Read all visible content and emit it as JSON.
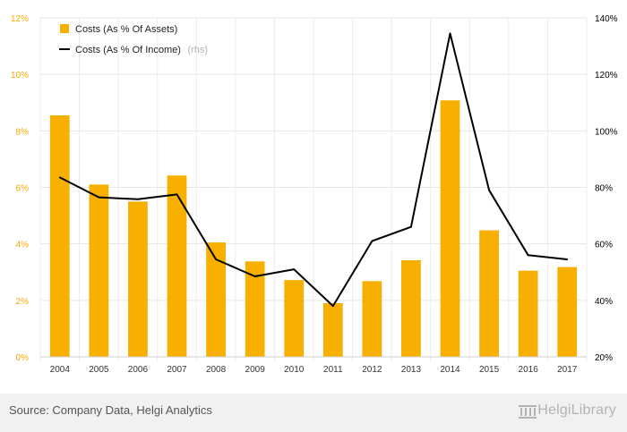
{
  "chart_data": {
    "type": "bar",
    "categories": [
      "2004",
      "2005",
      "2006",
      "2007",
      "2008",
      "2009",
      "2010",
      "2011",
      "2012",
      "2013",
      "2014",
      "2015",
      "2016",
      "2017"
    ],
    "series": [
      {
        "name": "Costs (As % Of Assets)",
        "type": "bar",
        "axis": "left",
        "color": "#f7b000",
        "values": [
          8.55,
          6.1,
          5.5,
          6.42,
          4.05,
          3.38,
          2.72,
          1.9,
          2.68,
          3.42,
          9.08,
          4.48,
          3.05,
          3.18
        ]
      },
      {
        "name": "Costs (As % Of Income)",
        "type": "line",
        "axis": "right",
        "color": "#000000",
        "values": [
          83.5,
          76.5,
          75.8,
          77.5,
          54.5,
          48.5,
          51,
          38,
          61,
          66,
          134.5,
          79,
          56,
          54.5
        ]
      }
    ],
    "y_left": {
      "min": 0,
      "max": 12,
      "ticks": [
        "0%",
        "2%",
        "4%",
        "6%",
        "8%",
        "10%",
        "12%"
      ],
      "color": "#f2a900"
    },
    "y_right": {
      "min": 20,
      "max": 140,
      "ticks": [
        "20%",
        "40%",
        "60%",
        "80%",
        "100%",
        "120%",
        "140%"
      ]
    },
    "legend": {
      "position": "top-left",
      "items": [
        {
          "label": "Costs (As % Of Assets)",
          "note": ""
        },
        {
          "label": "Costs (As % Of Income)",
          "note": "(rhs)"
        }
      ]
    },
    "grid": true
  },
  "footer": {
    "source": "Source: Company Data, Helgi Analytics",
    "brand": "HelgiLibrary"
  }
}
